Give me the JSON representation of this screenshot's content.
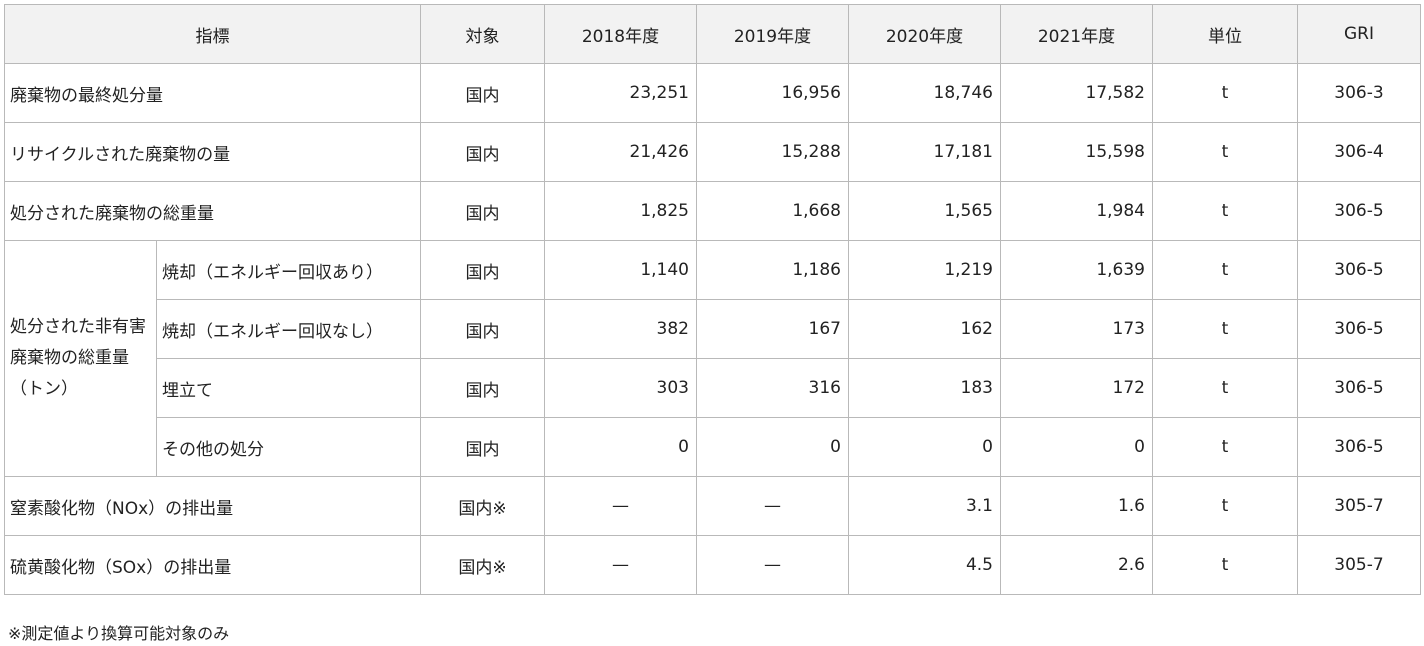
{
  "headers": [
    "指標",
    "対象",
    "2018年度",
    "2019年度",
    "2020年度",
    "2021年度",
    "単位",
    "GRI"
  ],
  "rows": [
    {
      "label": "廃棄物の最終処分量",
      "target": "国内",
      "v2018": "23,251",
      "v2019": "16,956",
      "v2020": "18,746",
      "v2021": "17,582",
      "unit": "t",
      "gri": "306-3"
    },
    {
      "label": "リサイクルされた廃棄物の量",
      "target": "国内",
      "v2018": "21,426",
      "v2019": "15,288",
      "v2020": "17,181",
      "v2021": "15,598",
      "unit": "t",
      "gri": "306-4"
    },
    {
      "label": "処分された廃棄物の総重量",
      "target": "国内",
      "v2018": "1,825",
      "v2019": "1,668",
      "v2020": "1,565",
      "v2021": "1,984",
      "unit": "t",
      "gri": "306-5"
    }
  ],
  "group": {
    "label": "処分された非有害廃棄物の総重量（トン）",
    "rows": [
      {
        "label": "焼却（エネルギー回収あり）",
        "target": "国内",
        "v2018": "1,140",
        "v2019": "1,186",
        "v2020": "1,219",
        "v2021": "1,639",
        "unit": "t",
        "gri": "306-5"
      },
      {
        "label": "焼却（エネルギー回収なし）",
        "target": "国内",
        "v2018": "382",
        "v2019": "167",
        "v2020": "162",
        "v2021": "173",
        "unit": "t",
        "gri": "306-5"
      },
      {
        "label": "埋立て",
        "target": "国内",
        "v2018": "303",
        "v2019": "316",
        "v2020": "183",
        "v2021": "172",
        "unit": "t",
        "gri": "306-5"
      },
      {
        "label": "その他の処分",
        "target": "国内",
        "v2018": "0",
        "v2019": "0",
        "v2020": "0",
        "v2021": "0",
        "unit": "t",
        "gri": "306-5"
      }
    ]
  },
  "emission_rows": [
    {
      "label": "窒素酸化物（NOx）の排出量",
      "target": "国内※",
      "v2018": "—",
      "v2019": "—",
      "v2020": "3.1",
      "v2021": "1.6",
      "unit": "t",
      "gri": "305-7"
    },
    {
      "label": "硫黄酸化物（SOx）の排出量",
      "target": "国内※",
      "v2018": "—",
      "v2019": "—",
      "v2020": "4.5",
      "v2021": "2.6",
      "unit": "t",
      "gri": "305-7"
    }
  ],
  "footnote": "※測定値より換算可能対象のみ"
}
